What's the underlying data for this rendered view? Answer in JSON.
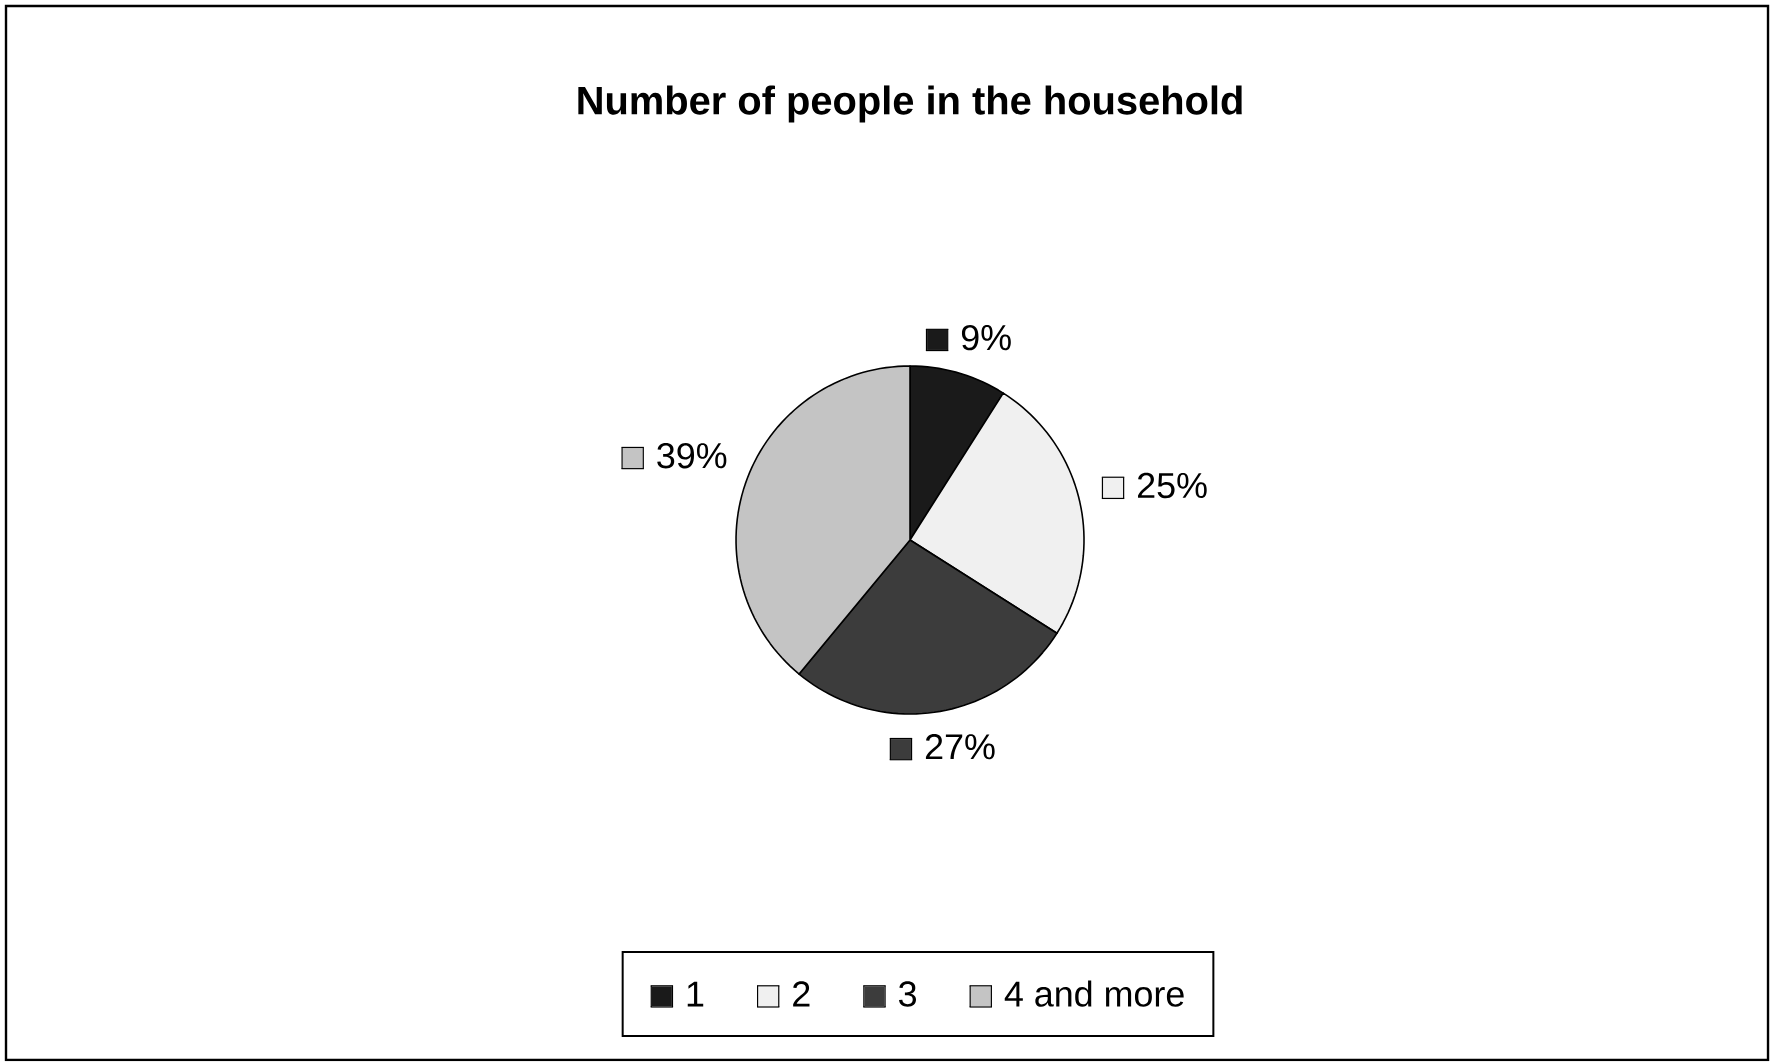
{
  "chart_data": {
    "type": "pie",
    "title": "Number of people in the household",
    "categories": [
      "1",
      "2",
      "3",
      "4 and more"
    ],
    "values": [
      9,
      25,
      27,
      39
    ],
    "value_labels": [
      "9%",
      "25%",
      "27%",
      "39%"
    ],
    "colors": [
      "#1a1a1a",
      "#f0f0f0",
      "#3c3c3c",
      "#c4c4c4"
    ],
    "legend": "bottom"
  }
}
